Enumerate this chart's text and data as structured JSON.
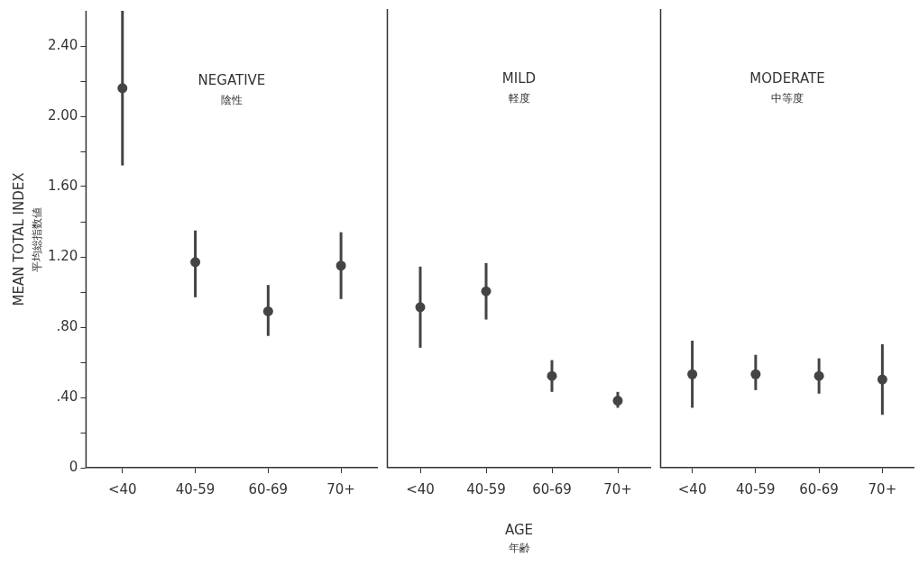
{
  "chart_data": [
    {
      "type": "scatter",
      "title": "NEGATIVE",
      "subtitle": "陰性",
      "ylabel": "MEAN TOTAL INDEX\n平均総指数値",
      "categories": [
        "<40",
        "40-59",
        "60-69",
        "70+"
      ],
      "color": "#444444",
      "marker": "circle",
      "values": [
        2.16,
        1.17,
        0.89,
        1.15
      ],
      "errors": [
        [
          1.72,
          2.6
        ],
        [
          0.97,
          1.35
        ],
        [
          0.75,
          1.04
        ],
        [
          0.96,
          1.34
        ]
      ],
      "ylim": [
        0,
        2.6
      ],
      "yticks": [
        {
          "value": 0,
          "label": "0"
        },
        {
          "value": 0.2,
          "label": null
        },
        {
          "value": 0.4,
          "label": ".40"
        },
        {
          "value": 0.6,
          "label": null
        },
        {
          "value": 0.8,
          "label": ".80"
        },
        {
          "value": 1.0,
          "label": null
        },
        {
          "value": 1.2,
          "label": "1.20"
        },
        {
          "value": 1.4,
          "label": null
        },
        {
          "value": 1.6,
          "label": "1.60"
        },
        {
          "value": 1.8,
          "label": null
        },
        {
          "value": 2.0,
          "label": "2.00"
        },
        {
          "value": 2.2,
          "label": null
        },
        {
          "value": 2.4,
          "label": "2.40"
        }
      ]
    },
    {
      "type": "scatter",
      "title": "MILD",
      "subtitle": "軽度",
      "xlabel": "AGE\n年齢",
      "categories": [
        "<40",
        "40-59",
        "60-69",
        "70+"
      ],
      "color": "#444444",
      "marker": "circle",
      "tick_labels": "x",
      "values": [
        0.91,
        1.0,
        0.52,
        0.38
      ],
      "errors": [
        [
          0.68,
          1.14
        ],
        [
          0.84,
          1.16
        ],
        [
          0.43,
          0.61
        ],
        [
          0.34,
          0.43
        ]
      ],
      "ylim": [
        0,
        2.6
      ]
    },
    {
      "type": "scatter",
      "title": "MODERATE",
      "subtitle": "中等度",
      "categories": [
        "<40",
        "40-59",
        "60-69",
        "70+"
      ],
      "color": "#444444",
      "marker": "circle",
      "tick_labels": "x",
      "values": [
        0.53,
        0.53,
        0.52,
        0.5
      ],
      "errors": [
        [
          0.34,
          0.72
        ],
        [
          0.44,
          0.64
        ],
        [
          0.42,
          0.62
        ],
        [
          0.3,
          0.7
        ]
      ],
      "ylim": [
        0,
        2.6
      ]
    }
  ]
}
